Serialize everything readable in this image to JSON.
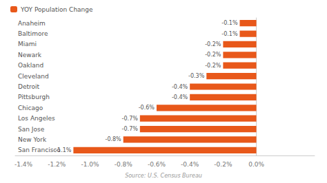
{
  "chart_data": {
    "type": "bar",
    "orientation": "horizontal",
    "categories": [
      "San Francisco",
      "New York",
      "San Jose",
      "Los Angeles",
      "Chicago",
      "Pittsburgh",
      "Detroit",
      "Cleveland",
      "Oakland",
      "Newark",
      "Miami",
      "Baltimore",
      "Anaheim"
    ],
    "series": [
      {
        "name": "YOY Population Change",
        "color": "#E8581A",
        "values": [
          -1.1,
          -0.8,
          -0.7,
          -0.7,
          -0.6,
          -0.4,
          -0.4,
          -0.3,
          -0.2,
          -0.2,
          -0.2,
          -0.1,
          -0.1
        ],
        "value_labels": [
          "-1.1%",
          "-0.8%",
          "-0.7%",
          "-0.7%",
          "-0.6%",
          "-0.4%",
          "-0.4%",
          "-0.3%",
          "-0.2%",
          "-0.2%",
          "-0.2%",
          "-0.1%",
          "-0.1%"
        ]
      }
    ],
    "xlim": [
      -1.45,
      0.35
    ],
    "xticks": [
      {
        "value": -1.4,
        "label": "-1.4%"
      },
      {
        "value": -1.2,
        "label": "-1.2%"
      },
      {
        "value": -1.0,
        "label": "-1.0%"
      },
      {
        "value": -0.8,
        "label": "-0.8%"
      },
      {
        "value": -0.6,
        "label": "-0.6%"
      },
      {
        "value": -0.4,
        "label": "-0.4%"
      },
      {
        "value": -0.2,
        "label": "-0.2%"
      },
      {
        "value": 0.0,
        "label": "0.0%"
      }
    ],
    "grid": false,
    "legend": "upper left",
    "data_labels": true,
    "annotation": "Source: U.S. Census Bureau"
  }
}
